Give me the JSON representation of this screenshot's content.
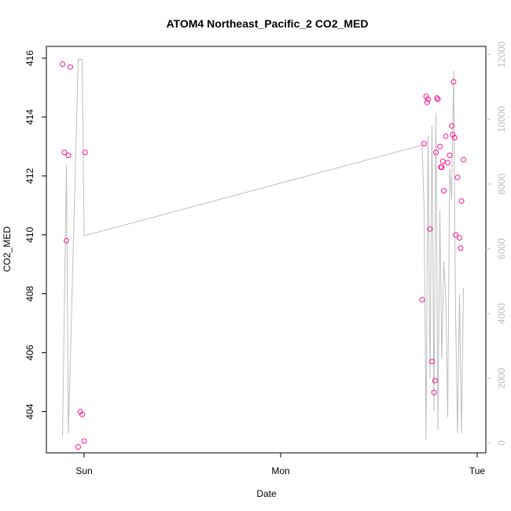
{
  "chart_data": {
    "type": "scatter",
    "title": "ATOM4 Northeast_Pacific_2 CO2_MED",
    "xlabel": "Date",
    "ylabel": "CO2_MED",
    "x_ticks": [
      "Sun",
      "Mon",
      "Tue"
    ],
    "y_ticks": [
      "404",
      "406",
      "408",
      "410",
      "412",
      "414",
      "416"
    ],
    "y2_ticks": [
      "0",
      "2000",
      "4000",
      "6000",
      "8000",
      "10000",
      "12000"
    ],
    "ylim": [
      402.6,
      416.4
    ],
    "y2lim": [
      -300,
      12250
    ],
    "xlim_days": [
      -0.11,
      2.03
    ],
    "grid": false,
    "colors": {
      "points": "#ff1493",
      "line": "#bebebe",
      "right_axis": "#bebebe"
    },
    "series": [
      {
        "kind": "points",
        "x_days": [
          -0.11,
          -0.1,
          -0.09,
          -0.08,
          -0.07,
          -0.03,
          -0.02,
          -0.01,
          0.0,
          0.005,
          1.72,
          1.73,
          1.74,
          1.745,
          1.75,
          1.76,
          1.77,
          1.78,
          1.785,
          1.79,
          1.795,
          1.8,
          1.81,
          1.815,
          1.82,
          1.825,
          1.83,
          1.84,
          1.85,
          1.86,
          1.87,
          1.875,
          1.88,
          1.885,
          1.89,
          1.9,
          1.91,
          1.915,
          1.92,
          1.93
        ],
        "y": [
          415.8,
          412.8,
          409.8,
          412.7,
          415.7,
          402.8,
          404.0,
          403.9,
          403.0,
          412.8,
          407.8,
          413.1,
          414.7,
          414.5,
          414.6,
          410.2,
          405.7,
          404.65,
          405.05,
          412.8,
          414.65,
          414.6,
          413.0,
          412.3,
          412.3,
          412.5,
          411.5,
          413.35,
          412.45,
          412.7,
          413.7,
          413.4,
          415.2,
          413.3,
          410.0,
          411.95,
          409.9,
          409.55,
          411.15,
          412.55
        ]
      },
      {
        "kind": "line",
        "x_days": [
          -0.11,
          -0.09,
          -0.08,
          -0.03,
          -0.01,
          0.0,
          1.72,
          1.73,
          1.74,
          1.75,
          1.76,
          1.77,
          1.78,
          1.79,
          1.8,
          1.81,
          1.82,
          1.83,
          1.84,
          1.85,
          1.86,
          1.87,
          1.88,
          1.89,
          1.9,
          1.91,
          1.92,
          1.93
        ],
        "y2": [
          200,
          8600,
          300,
          11850,
          11850,
          6400,
          9200,
          7200,
          100,
          9500,
          2000,
          9800,
          1000,
          10200,
          400,
          7200,
          2600,
          5600,
          4500,
          800,
          8500,
          7500,
          11500,
          4000,
          300,
          4600,
          300,
          4800
        ]
      }
    ]
  }
}
